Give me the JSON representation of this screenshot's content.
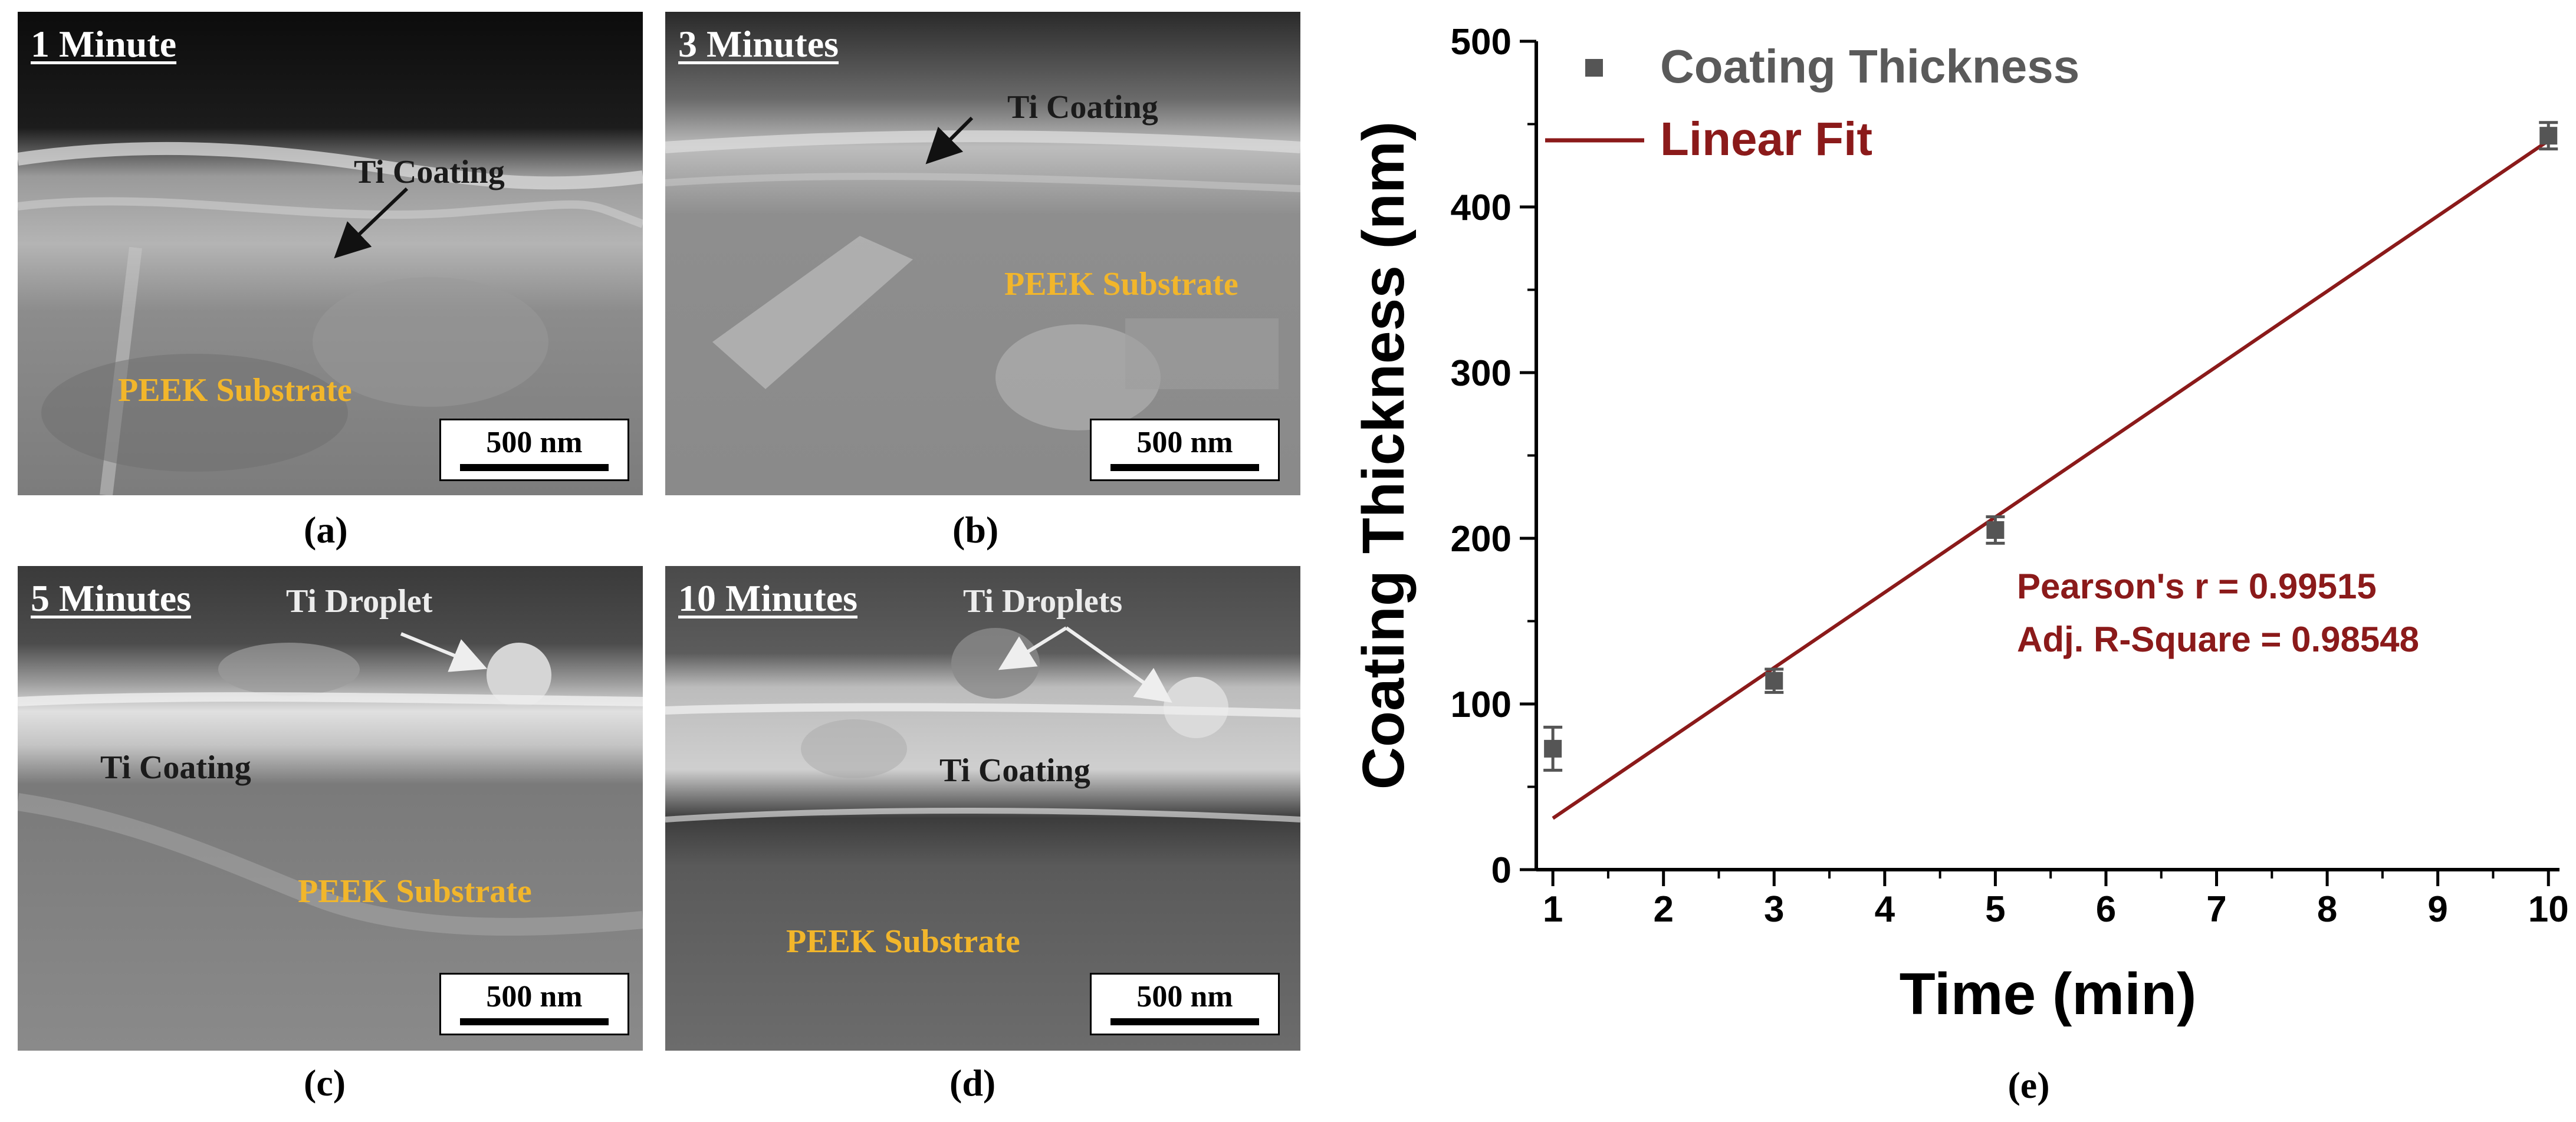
{
  "panels": [
    {
      "title": "1 Minute",
      "coating_label": "Ti Coating",
      "substrate_label": "PEEK Substrate",
      "scale_label": "500 nm",
      "caption": "(a)"
    },
    {
      "title": "3 Minutes",
      "coating_label": "Ti Coating",
      "substrate_label": "PEEK Substrate",
      "scale_label": "500 nm",
      "caption": "(b)"
    },
    {
      "title": "5 Minutes",
      "droplet_label": "Ti Droplet",
      "coating_label": "Ti Coating",
      "substrate_label": "PEEK Substrate",
      "scale_label": "500 nm",
      "caption": "(c)"
    },
    {
      "title": "10 Minutes",
      "droplet_label": "Ti Droplets",
      "coating_label": "Ti Coating",
      "substrate_label": "PEEK Substrate",
      "scale_label": "500 nm",
      "caption": "(d)"
    }
  ],
  "colors": {
    "fit_line": "#8b1a1a",
    "marker": "#555555",
    "axis": "#000000",
    "label_yellow": "#f2b62b"
  },
  "chart_data": {
    "type": "scatter",
    "caption": "(e)",
    "xlabel": "Time (min)",
    "ylabel": "Coating Thickness (nm)",
    "xlim": [
      0.85,
      10.1
    ],
    "ylim": [
      0,
      500
    ],
    "xticks": [
      1,
      2,
      3,
      4,
      5,
      6,
      7,
      8,
      9,
      10
    ],
    "yticks": [
      0,
      100,
      200,
      300,
      400,
      500
    ],
    "grid": false,
    "legend_position": "top-left",
    "series": [
      {
        "name": "Coating Thickness",
        "kind": "points",
        "x": [
          1,
          3,
          5,
          10
        ],
        "y": [
          73,
          114,
          205,
          443
        ],
        "err": [
          13,
          7,
          8,
          8
        ]
      },
      {
        "name": "Linear Fit",
        "kind": "line",
        "x": [
          1,
          10
        ],
        "y": [
          31,
          440
        ]
      }
    ],
    "annotations": [
      "Pearson's r = 0.99515",
      "Adj. R-Square = 0.98548"
    ]
  }
}
